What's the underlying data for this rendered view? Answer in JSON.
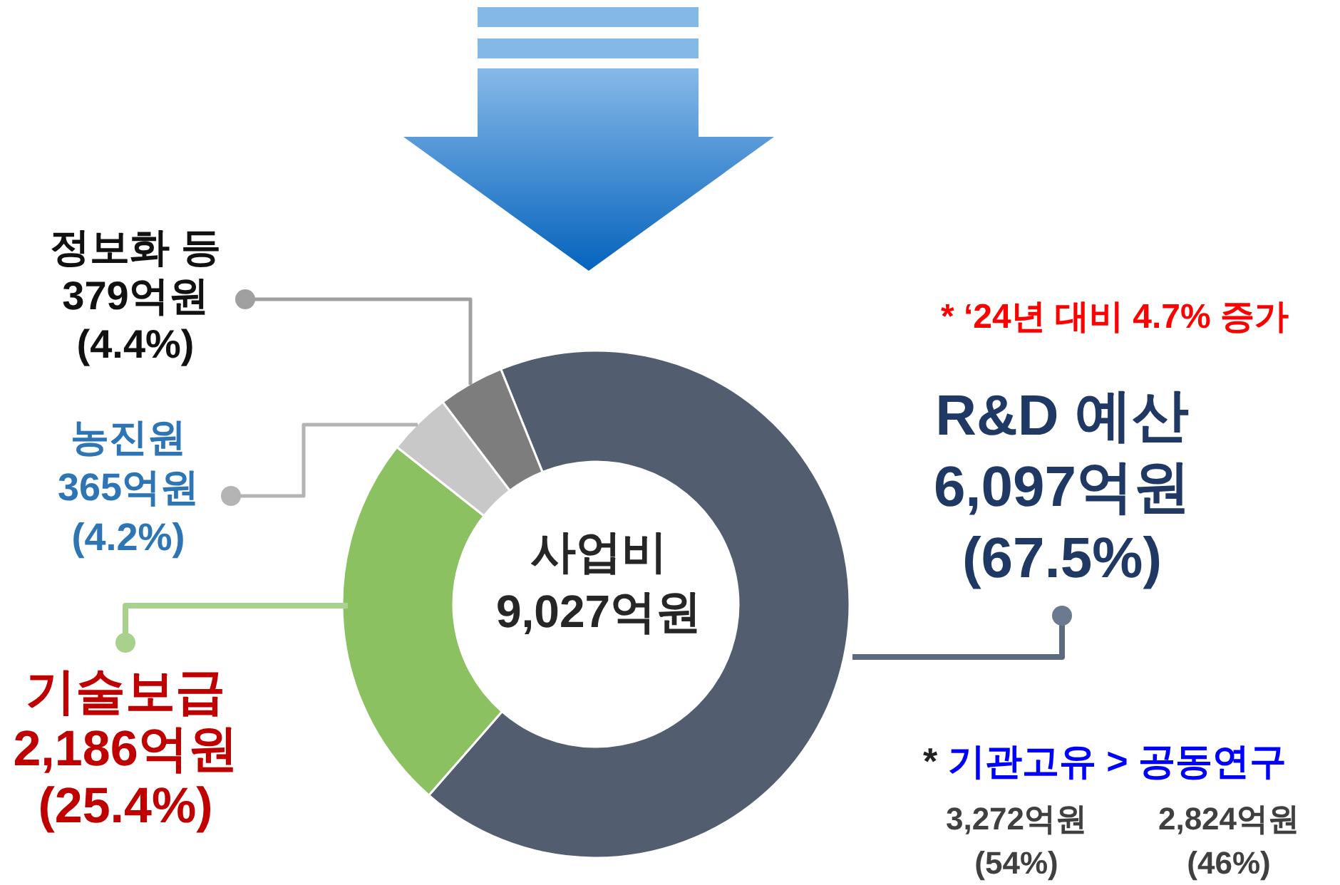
{
  "chart_data": {
    "type": "donut",
    "categories": [
      "R&D 예산",
      "기술보급",
      "농진원",
      "정보화 등"
    ],
    "values": [
      6097,
      2186,
      365,
      379
    ],
    "colors": [
      "#535d70",
      "#8bc160",
      "#c8c8c8",
      "#7d7d7d"
    ],
    "value_labels": [
      "6,097억원\n(67.5%)",
      "2,186억원\n(25.4%)",
      "365억원\n(4.2%)",
      "379억원\n(4.4%)"
    ],
    "annotations": [
      "사업비\n9,027억원",
      "* ‘24년 대비 4.7% 증가",
      "* 기관고유 > 공동연구",
      "3,272억원\n(54%)",
      "2,824억원\n(46%)"
    ]
  }
}
